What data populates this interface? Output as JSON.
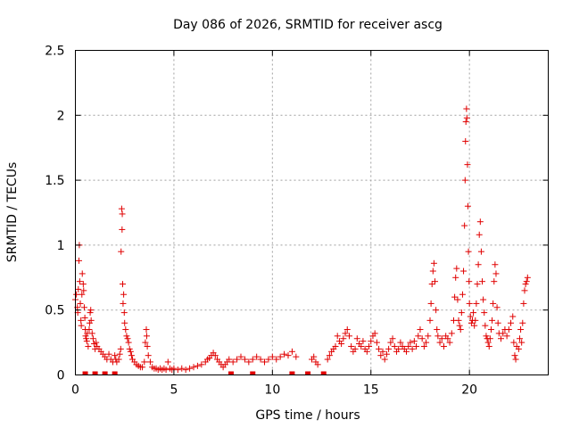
{
  "chart_data": {
    "type": "scatter",
    "title": "Day 086 of 2026, SRMTID for receiver ascg",
    "xlabel": "GPS time / hours",
    "ylabel": "SRMTID / TECUs",
    "xlim": [
      0,
      24
    ],
    "ylim": [
      0,
      2.5
    ],
    "grid": true,
    "marker": "+",
    "series_color": "#e00000",
    "x_ticks": [
      {
        "value": 0,
        "label": "0"
      },
      {
        "value": 5,
        "label": "5"
      },
      {
        "value": 10,
        "label": "10"
      },
      {
        "value": 15,
        "label": "15"
      },
      {
        "value": 20,
        "label": "20"
      }
    ],
    "y_ticks": [
      {
        "value": 0,
        "label": "0"
      },
      {
        "value": 0.5,
        "label": "0.5"
      },
      {
        "value": 1,
        "label": "1"
      },
      {
        "value": 1.5,
        "label": "1.5"
      },
      {
        "value": 2,
        "label": "2"
      },
      {
        "value": 2.5,
        "label": "2.5"
      }
    ],
    "series": [
      {
        "name": "SRMTID",
        "points": [
          [
            0.0,
            0.58
          ],
          [
            0.05,
            0.62
          ],
          [
            0.1,
            0.52
          ],
          [
            0.12,
            0.48
          ],
          [
            0.15,
            0.66
          ],
          [
            0.18,
            0.88
          ],
          [
            0.2,
            1.0
          ],
          [
            0.22,
            0.72
          ],
          [
            0.25,
            0.55
          ],
          [
            0.28,
            0.42
          ],
          [
            0.3,
            0.38
          ],
          [
            0.33,
            0.62
          ],
          [
            0.35,
            0.78
          ],
          [
            0.4,
            0.7
          ],
          [
            0.42,
            0.65
          ],
          [
            0.45,
            0.52
          ],
          [
            0.48,
            0.44
          ],
          [
            0.5,
            0.35
          ],
          [
            0.52,
            0.3
          ],
          [
            0.55,
            0.28
          ],
          [
            0.58,
            0.26
          ],
          [
            0.6,
            0.32
          ],
          [
            0.65,
            0.22
          ],
          [
            0.7,
            0.35
          ],
          [
            0.72,
            0.4
          ],
          [
            0.75,
            0.48
          ],
          [
            0.78,
            0.5
          ],
          [
            0.8,
            0.42
          ],
          [
            0.85,
            0.32
          ],
          [
            0.9,
            0.28
          ],
          [
            0.95,
            0.24
          ],
          [
            1.0,
            0.2
          ],
          [
            1.05,
            0.25
          ],
          [
            1.1,
            0.22
          ],
          [
            1.2,
            0.2
          ],
          [
            1.3,
            0.18
          ],
          [
            1.4,
            0.16
          ],
          [
            1.5,
            0.14
          ],
          [
            1.6,
            0.12
          ],
          [
            1.7,
            0.16
          ],
          [
            1.8,
            0.12
          ],
          [
            1.9,
            0.1
          ],
          [
            2.0,
            0.15
          ],
          [
            2.05,
            0.12
          ],
          [
            2.1,
            0.1
          ],
          [
            2.2,
            0.12
          ],
          [
            2.25,
            0.16
          ],
          [
            2.3,
            0.2
          ],
          [
            2.32,
            0.95
          ],
          [
            2.35,
            1.28
          ],
          [
            2.37,
            1.12
          ],
          [
            2.38,
            1.24
          ],
          [
            2.4,
            0.7
          ],
          [
            2.42,
            0.55
          ],
          [
            2.45,
            0.62
          ],
          [
            2.48,
            0.48
          ],
          [
            2.5,
            0.4
          ],
          [
            2.55,
            0.35
          ],
          [
            2.6,
            0.3
          ],
          [
            2.65,
            0.28
          ],
          [
            2.7,
            0.25
          ],
          [
            2.75,
            0.2
          ],
          [
            2.8,
            0.18
          ],
          [
            2.85,
            0.15
          ],
          [
            2.9,
            0.12
          ],
          [
            3.0,
            0.1
          ],
          [
            3.1,
            0.08
          ],
          [
            3.2,
            0.07
          ],
          [
            3.3,
            0.06
          ],
          [
            3.4,
            0.06
          ],
          [
            3.5,
            0.1
          ],
          [
            3.55,
            0.25
          ],
          [
            3.6,
            0.35
          ],
          [
            3.62,
            0.3
          ],
          [
            3.65,
            0.22
          ],
          [
            3.7,
            0.15
          ],
          [
            3.8,
            0.1
          ],
          [
            3.9,
            0.06
          ],
          [
            4.0,
            0.05
          ],
          [
            4.1,
            0.05
          ],
          [
            4.2,
            0.04
          ],
          [
            4.3,
            0.05
          ],
          [
            4.4,
            0.04
          ],
          [
            4.5,
            0.05
          ],
          [
            4.6,
            0.04
          ],
          [
            4.7,
            0.1
          ],
          [
            4.8,
            0.05
          ],
          [
            4.9,
            0.04
          ],
          [
            5.0,
            0.05
          ],
          [
            5.2,
            0.04
          ],
          [
            5.4,
            0.05
          ],
          [
            5.6,
            0.04
          ],
          [
            5.8,
            0.05
          ],
          [
            6.0,
            0.06
          ],
          [
            6.2,
            0.07
          ],
          [
            6.4,
            0.08
          ],
          [
            6.6,
            0.1
          ],
          [
            6.7,
            0.12
          ],
          [
            6.8,
            0.13
          ],
          [
            6.9,
            0.15
          ],
          [
            7.0,
            0.17
          ],
          [
            7.1,
            0.15
          ],
          [
            7.2,
            0.12
          ],
          [
            7.3,
            0.1
          ],
          [
            7.4,
            0.08
          ],
          [
            7.5,
            0.06
          ],
          [
            7.6,
            0.08
          ],
          [
            7.7,
            0.1
          ],
          [
            7.8,
            0.12
          ],
          [
            8.0,
            0.1
          ],
          [
            8.2,
            0.12
          ],
          [
            8.4,
            0.14
          ],
          [
            8.6,
            0.12
          ],
          [
            8.8,
            0.1
          ],
          [
            9.0,
            0.12
          ],
          [
            9.2,
            0.14
          ],
          [
            9.4,
            0.12
          ],
          [
            9.6,
            0.1
          ],
          [
            9.8,
            0.12
          ],
          [
            10.0,
            0.14
          ],
          [
            10.2,
            0.12
          ],
          [
            10.4,
            0.14
          ],
          [
            10.6,
            0.16
          ],
          [
            10.8,
            0.15
          ],
          [
            11.0,
            0.18
          ],
          [
            11.2,
            0.14
          ],
          [
            12.0,
            0.12
          ],
          [
            12.1,
            0.14
          ],
          [
            12.2,
            0.1
          ],
          [
            12.3,
            0.08
          ],
          [
            12.8,
            0.12
          ],
          [
            12.9,
            0.15
          ],
          [
            13.0,
            0.18
          ],
          [
            13.1,
            0.2
          ],
          [
            13.2,
            0.22
          ],
          [
            13.3,
            0.3
          ],
          [
            13.4,
            0.26
          ],
          [
            13.5,
            0.24
          ],
          [
            13.6,
            0.28
          ],
          [
            13.7,
            0.32
          ],
          [
            13.8,
            0.35
          ],
          [
            13.9,
            0.3
          ],
          [
            14.0,
            0.22
          ],
          [
            14.1,
            0.18
          ],
          [
            14.2,
            0.2
          ],
          [
            14.3,
            0.28
          ],
          [
            14.4,
            0.24
          ],
          [
            14.5,
            0.22
          ],
          [
            14.6,
            0.26
          ],
          [
            14.7,
            0.2
          ],
          [
            14.8,
            0.18
          ],
          [
            14.9,
            0.22
          ],
          [
            15.0,
            0.26
          ],
          [
            15.1,
            0.3
          ],
          [
            15.2,
            0.32
          ],
          [
            15.3,
            0.25
          ],
          [
            15.4,
            0.2
          ],
          [
            15.5,
            0.15
          ],
          [
            15.6,
            0.18
          ],
          [
            15.7,
            0.12
          ],
          [
            15.8,
            0.16
          ],
          [
            15.9,
            0.2
          ],
          [
            16.0,
            0.25
          ],
          [
            16.1,
            0.28
          ],
          [
            16.2,
            0.22
          ],
          [
            16.3,
            0.18
          ],
          [
            16.4,
            0.2
          ],
          [
            16.5,
            0.25
          ],
          [
            16.6,
            0.22
          ],
          [
            16.7,
            0.2
          ],
          [
            16.8,
            0.18
          ],
          [
            16.9,
            0.22
          ],
          [
            17.0,
            0.25
          ],
          [
            17.1,
            0.2
          ],
          [
            17.2,
            0.26
          ],
          [
            17.3,
            0.22
          ],
          [
            17.4,
            0.3
          ],
          [
            17.5,
            0.35
          ],
          [
            17.6,
            0.28
          ],
          [
            17.7,
            0.22
          ],
          [
            17.8,
            0.25
          ],
          [
            17.9,
            0.3
          ],
          [
            18.0,
            0.42
          ],
          [
            18.05,
            0.55
          ],
          [
            18.1,
            0.7
          ],
          [
            18.15,
            0.8
          ],
          [
            18.2,
            0.86
          ],
          [
            18.25,
            0.72
          ],
          [
            18.3,
            0.5
          ],
          [
            18.35,
            0.35
          ],
          [
            18.4,
            0.3
          ],
          [
            18.5,
            0.25
          ],
          [
            18.6,
            0.28
          ],
          [
            18.7,
            0.22
          ],
          [
            18.8,
            0.3
          ],
          [
            18.9,
            0.28
          ],
          [
            19.0,
            0.25
          ],
          [
            19.1,
            0.32
          ],
          [
            19.2,
            0.42
          ],
          [
            19.25,
            0.6
          ],
          [
            19.3,
            0.75
          ],
          [
            19.35,
            0.82
          ],
          [
            19.4,
            0.58
          ],
          [
            19.45,
            0.42
          ],
          [
            19.5,
            0.38
          ],
          [
            19.55,
            0.35
          ],
          [
            19.6,
            0.48
          ],
          [
            19.65,
            0.62
          ],
          [
            19.7,
            0.8
          ],
          [
            19.75,
            1.15
          ],
          [
            19.78,
            1.5
          ],
          [
            19.8,
            1.8
          ],
          [
            19.82,
            1.95
          ],
          [
            19.85,
            2.05
          ],
          [
            19.87,
            1.98
          ],
          [
            19.9,
            1.62
          ],
          [
            19.92,
            1.3
          ],
          [
            19.95,
            0.95
          ],
          [
            19.98,
            0.72
          ],
          [
            20.0,
            0.55
          ],
          [
            20.05,
            0.45
          ],
          [
            20.1,
            0.4
          ],
          [
            20.15,
            0.42
          ],
          [
            20.2,
            0.48
          ],
          [
            20.25,
            0.38
          ],
          [
            20.3,
            0.42
          ],
          [
            20.35,
            0.55
          ],
          [
            20.4,
            0.7
          ],
          [
            20.45,
            0.85
          ],
          [
            20.5,
            1.08
          ],
          [
            20.55,
            1.18
          ],
          [
            20.6,
            0.95
          ],
          [
            20.65,
            0.72
          ],
          [
            20.7,
            0.58
          ],
          [
            20.75,
            0.48
          ],
          [
            20.8,
            0.38
          ],
          [
            20.85,
            0.3
          ],
          [
            20.9,
            0.28
          ],
          [
            20.95,
            0.25
          ],
          [
            21.0,
            0.22
          ],
          [
            21.05,
            0.28
          ],
          [
            21.1,
            0.35
          ],
          [
            21.15,
            0.42
          ],
          [
            21.2,
            0.55
          ],
          [
            21.25,
            0.72
          ],
          [
            21.3,
            0.85
          ],
          [
            21.35,
            0.78
          ],
          [
            21.4,
            0.52
          ],
          [
            21.45,
            0.4
          ],
          [
            21.5,
            0.32
          ],
          [
            21.6,
            0.28
          ],
          [
            21.7,
            0.32
          ],
          [
            21.8,
            0.35
          ],
          [
            21.9,
            0.3
          ],
          [
            22.0,
            0.35
          ],
          [
            22.1,
            0.4
          ],
          [
            22.2,
            0.45
          ],
          [
            22.25,
            0.25
          ],
          [
            22.3,
            0.15
          ],
          [
            22.35,
            0.12
          ],
          [
            22.4,
            0.22
          ],
          [
            22.5,
            0.2
          ],
          [
            22.55,
            0.28
          ],
          [
            22.6,
            0.35
          ],
          [
            22.65,
            0.25
          ],
          [
            22.7,
            0.4
          ],
          [
            22.75,
            0.55
          ],
          [
            22.8,
            0.65
          ],
          [
            22.85,
            0.7
          ],
          [
            22.9,
            0.72
          ],
          [
            22.95,
            0.75
          ]
        ],
        "gaps": [
          0.5,
          1.0,
          1.5,
          2.0,
          7.9,
          9.0,
          11.0,
          11.8,
          12.6
        ]
      }
    ]
  }
}
